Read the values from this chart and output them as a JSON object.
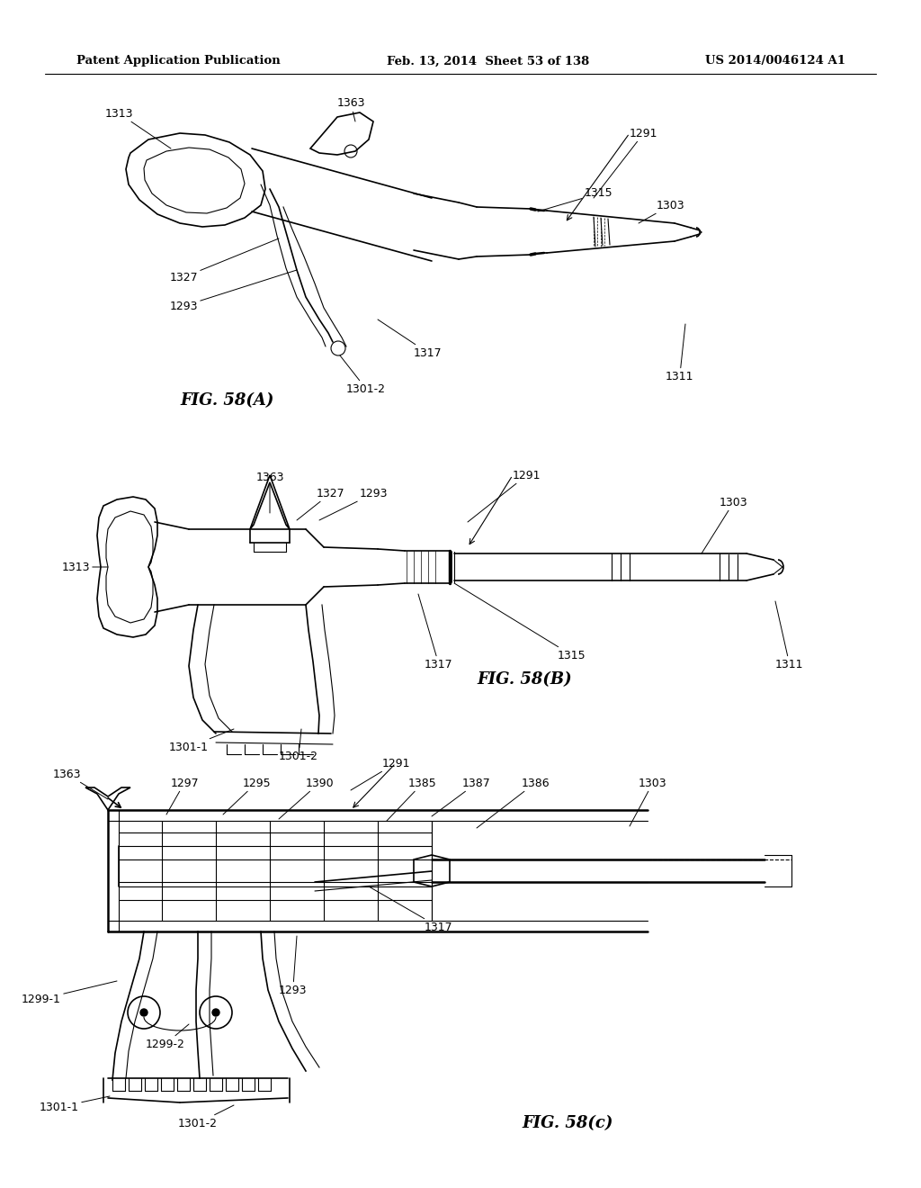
{
  "header_left": "Patent Application Publication",
  "header_mid": "Feb. 13, 2014  Sheet 53 of 138",
  "header_right": "US 2014/0046124 A1",
  "fig_label_A": "FIG. 58(A)",
  "fig_label_B": "FIG. 58(B)",
  "fig_label_C": "FIG. 58(c)",
  "background": "#ffffff",
  "line_color": "#000000",
  "fig_label_fontsize": 13,
  "header_fontsize": 9.5,
  "ref_fontsize": 9
}
